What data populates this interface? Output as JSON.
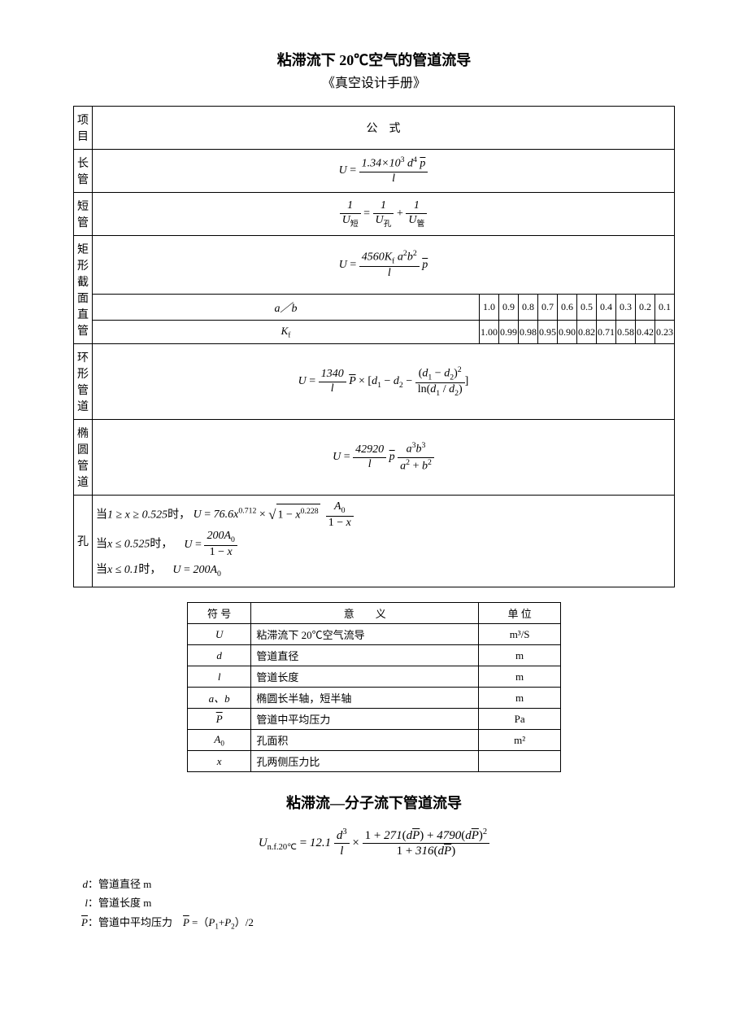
{
  "title": "粘滞流下 20℃空气的管道流导",
  "subtitle": "《真空设计手册》",
  "table1": {
    "header_item": "项目",
    "header_formula": "公　式",
    "rows": {
      "long_pipe": {
        "label": "长管"
      },
      "short_pipe": {
        "label": "短管"
      },
      "rect_pipe": {
        "label": "矩形截面直管",
        "ab_label": "a／b",
        "ab_values": [
          "1.0",
          "0.9",
          "0.8",
          "0.7",
          "0.6",
          "0.5",
          "0.4",
          "0.3",
          "0.2",
          "0.1"
        ],
        "kf_label": "K",
        "kf_sub": "f",
        "kf_values": [
          "1.00",
          "0.99",
          "0.98",
          "0.95",
          "0.90",
          "0.82",
          "0.71",
          "0.58",
          "0.42",
          "0.23"
        ]
      },
      "ring_pipe": {
        "label": "环形管道"
      },
      "ellipse_pipe": {
        "label": "椭圆管道"
      },
      "hole": {
        "label": "孔",
        "cond1_pre": "当",
        "cond1_range": "1 ≥ x ≥ 0.525",
        "cond1_suf": "时，",
        "cond2_range": "x ≤ 0.525",
        "cond3_range": "x ≤ 0.1",
        "eq3_rhs": "200A",
        "eq3_sub": "0"
      }
    }
  },
  "table2": {
    "h_sym": "符 号",
    "h_mean": "意　　义",
    "h_unit": "单 位",
    "rows": [
      {
        "sym_html": "U",
        "mean": "粘滞流下 20℃空气流导",
        "unit": "m³/S"
      },
      {
        "sym_html": "d",
        "mean": "管道直径",
        "unit": "m"
      },
      {
        "sym_html": "l",
        "mean": "管道长度",
        "unit": "m"
      },
      {
        "sym_html": "a、b",
        "mean": "椭圆长半轴，短半轴",
        "unit": "m"
      },
      {
        "sym_html": "P̄",
        "mean": "管道中平均压力",
        "unit": "Pa",
        "overline": true,
        "sym_plain": "P"
      },
      {
        "sym_html": "A₀",
        "mean": "孔面积",
        "unit": "m²",
        "sub": "0",
        "sym_plain": "A"
      },
      {
        "sym_html": "x",
        "mean": "孔两侧压力比",
        "unit": ""
      }
    ]
  },
  "section2_title": "粘滞流—分子流下管道流导",
  "defs": {
    "d": "管道直径 m",
    "l": "管道长度 m",
    "p": "管道中平均压力"
  },
  "consts": {
    "c1": "1.34×10",
    "c1_exp": "3",
    "c_4560": "4560",
    "c_1340": "1340",
    "c_42920": "42920",
    "c_766": "76.6",
    "c_0712": "0.712",
    "c_0228": "0.228",
    "c_200": "200",
    "c_121": "12.1",
    "c_271": "271",
    "c_4790": "4790",
    "c_316": "316"
  }
}
